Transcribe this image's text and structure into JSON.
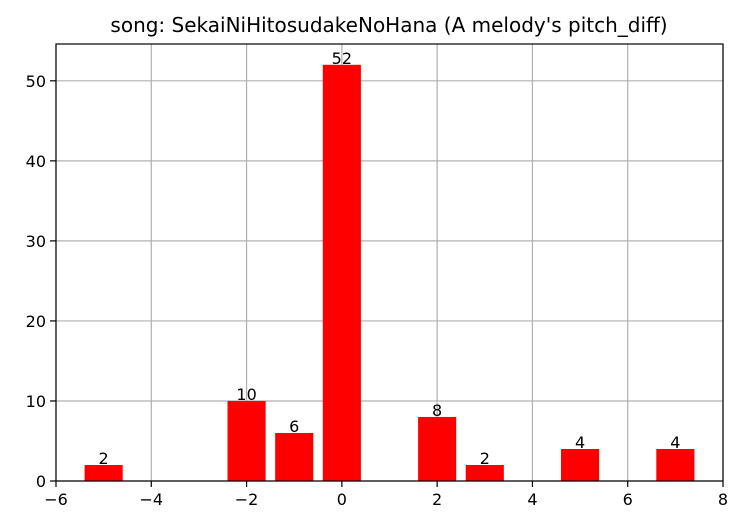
{
  "chart_data": {
    "type": "bar",
    "title": "song: SekaiNiHitosudakeNoHana (A melody's pitch_diff)",
    "xlabel": "",
    "ylabel": "",
    "x": [
      -5,
      -2,
      -1,
      0,
      2,
      3,
      5,
      7
    ],
    "values": [
      2,
      10,
      6,
      52,
      8,
      2,
      4,
      4
    ],
    "data_labels": [
      "2",
      "10",
      "6",
      "52",
      "8",
      "2",
      "4",
      "4"
    ],
    "bar_width": 0.8,
    "xlim": [
      -6,
      8
    ],
    "ylim": [
      0,
      54.6
    ],
    "xticks": [
      -6,
      -4,
      -2,
      0,
      2,
      4,
      6,
      8
    ],
    "xtick_labels": [
      "−6",
      "−4",
      "−2",
      "0",
      "2",
      "4",
      "6",
      "8"
    ],
    "yticks": [
      0,
      10,
      20,
      30,
      40,
      50
    ],
    "ytick_labels": [
      "0",
      "10",
      "20",
      "30",
      "40",
      "50"
    ],
    "grid": true,
    "bar_color": "#ff0000"
  }
}
